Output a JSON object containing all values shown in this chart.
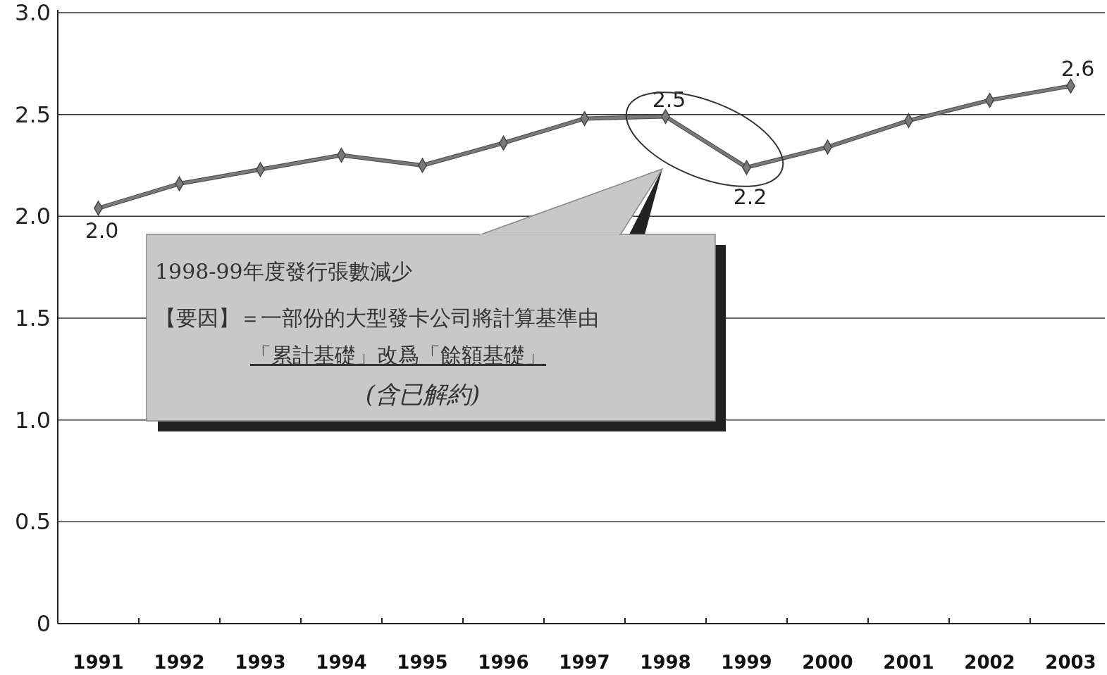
{
  "chart_data": {
    "type": "line",
    "categories": [
      "1991",
      "1992",
      "1993",
      "1994",
      "1995",
      "1996",
      "1997",
      "1998",
      "1999",
      "2000",
      "2001",
      "2002",
      "2003"
    ],
    "series": [
      {
        "color": "#7a7a7a",
        "values": [
          2.04,
          2.16,
          2.23,
          2.3,
          2.25,
          2.36,
          2.48,
          2.49,
          2.24,
          2.34,
          2.47,
          2.57,
          2.64
        ],
        "value_labels": [
          "2.0",
          null,
          null,
          null,
          null,
          null,
          null,
          "2.5",
          "2.2",
          null,
          null,
          null,
          "2.6"
        ]
      }
    ],
    "ylim": [
      0,
      3
    ],
    "yticks": [
      {
        "value": 0,
        "label": "0"
      },
      {
        "value": 0.5,
        "label": "0.5"
      },
      {
        "value": 1,
        "label": "1.0"
      },
      {
        "value": 1.5,
        "label": "1.5"
      },
      {
        "value": 2,
        "label": "2.0"
      },
      {
        "value": 2.5,
        "label": "2.5"
      },
      {
        "value": 3,
        "label": "3.0"
      }
    ],
    "grid": "y",
    "marker": "diamond",
    "line_style": "solid",
    "annotations": [
      "1998-99年度發行張數減少",
      "【要因】＝一部份的大型發卡公司將計算基準由",
      "「累計基礎」改爲「餘額基礎」",
      "(含已解約)"
    ]
  }
}
